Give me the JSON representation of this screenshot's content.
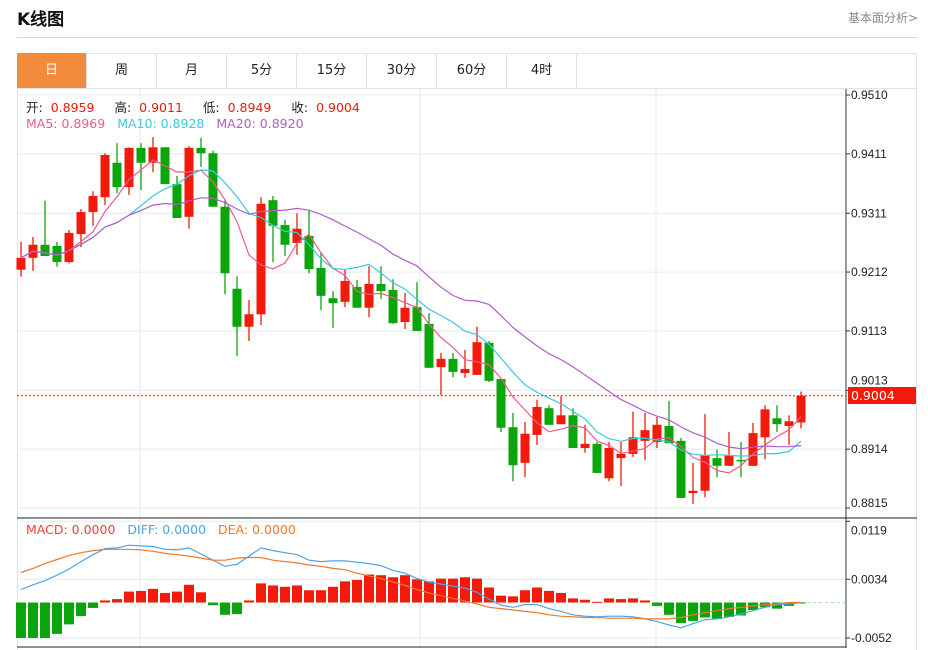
{
  "header": {
    "title": "K线图",
    "link": "基本面分析>"
  },
  "tabs": [
    {
      "label": "日",
      "active": true
    },
    {
      "label": "周"
    },
    {
      "label": "月"
    },
    {
      "label": "5分"
    },
    {
      "label": "15分"
    },
    {
      "label": "30分"
    },
    {
      "label": "60分"
    },
    {
      "label": "4时"
    }
  ],
  "ohlc_legend": {
    "open_label": "开:",
    "open": "0.8959",
    "high_label": "高:",
    "high": "0.9011",
    "low_label": "低:",
    "low": "0.8949",
    "close_label": "收:",
    "close": "0.9004"
  },
  "ma_legend": {
    "ma5": "MA5: 0.8969",
    "ma10": "MA10: 0.8928",
    "ma20": "MA20: 0.8920"
  },
  "macd_legend": {
    "macd": "MACD: 0.0000",
    "diff": "DIFF: 0.0000",
    "dea": "DEA: 0.0000"
  },
  "current_price": "0.9004",
  "colors": {
    "up": "#f21a0a",
    "down": "#0aa50a",
    "ma5": "#ee5a8c",
    "ma10": "#3cc8dc",
    "ma20": "#b25cc8",
    "diff": "#4fa3e8",
    "dea": "#f07828",
    "active_tab": "#f28c3c"
  },
  "chart_data": [
    {
      "type": "candlestick",
      "title": "K线图",
      "y_ticks": [
        "0.9510",
        "0.9411",
        "0.9311",
        "0.9212",
        "0.9113",
        "0.9013",
        "0.8914",
        "0.8815"
      ],
      "ylim": [
        0.8815,
        0.951
      ],
      "ma_periods": [
        5,
        10,
        20
      ],
      "candles_ohlc": [
        [
          0.9216,
          0.9263,
          0.9204,
          0.9236
        ],
        [
          0.9236,
          0.9271,
          0.9214,
          0.9258
        ],
        [
          0.9258,
          0.9332,
          0.9239,
          0.9239
        ],
        [
          0.9256,
          0.9263,
          0.9221,
          0.9229
        ],
        [
          0.9229,
          0.9283,
          0.9227,
          0.9278
        ],
        [
          0.9276,
          0.9318,
          0.9254,
          0.9313
        ],
        [
          0.9313,
          0.9348,
          0.929,
          0.934
        ],
        [
          0.9338,
          0.9412,
          0.9325,
          0.9409
        ],
        [
          0.9396,
          0.9429,
          0.9345,
          0.9355
        ],
        [
          0.9355,
          0.9422,
          0.9342,
          0.9421
        ],
        [
          0.9421,
          0.9429,
          0.935,
          0.9396
        ],
        [
          0.9396,
          0.9439,
          0.938,
          0.9422
        ],
        [
          0.9422,
          0.9422,
          0.936,
          0.936
        ],
        [
          0.936,
          0.9374,
          0.9303,
          0.9303
        ],
        [
          0.9305,
          0.9424,
          0.9285,
          0.9421
        ],
        [
          0.9421,
          0.9438,
          0.9389,
          0.9412
        ],
        [
          0.9412,
          0.9416,
          0.9322,
          0.9322
        ],
        [
          0.9322,
          0.9333,
          0.9175,
          0.921
        ],
        [
          0.9184,
          0.9205,
          0.9071,
          0.912
        ],
        [
          0.912,
          0.9165,
          0.9096,
          0.9141
        ],
        [
          0.9141,
          0.9338,
          0.9123,
          0.9327
        ],
        [
          0.9333,
          0.934,
          0.9229,
          0.929
        ],
        [
          0.9291,
          0.93,
          0.9239,
          0.9258
        ],
        [
          0.9261,
          0.9311,
          0.9241,
          0.9285
        ],
        [
          0.9273,
          0.9316,
          0.921,
          0.9217
        ],
        [
          0.9219,
          0.9244,
          0.9148,
          0.9172
        ],
        [
          0.9168,
          0.918,
          0.9118,
          0.916
        ],
        [
          0.9162,
          0.9217,
          0.9153,
          0.9197
        ],
        [
          0.9187,
          0.9199,
          0.9152,
          0.9152
        ],
        [
          0.9152,
          0.9222,
          0.9136,
          0.9192
        ],
        [
          0.9192,
          0.9222,
          0.9167,
          0.918
        ],
        [
          0.9182,
          0.92,
          0.9125,
          0.9126
        ],
        [
          0.9128,
          0.9177,
          0.9116,
          0.9152
        ],
        [
          0.9153,
          0.9195,
          0.9113,
          0.9113
        ],
        [
          0.9125,
          0.9143,
          0.9051,
          0.9051
        ],
        [
          0.9052,
          0.9076,
          0.9005,
          0.9066
        ],
        [
          0.9066,
          0.9076,
          0.9035,
          0.9044
        ],
        [
          0.9042,
          0.9081,
          0.9034,
          0.9049
        ],
        [
          0.9039,
          0.912,
          0.9039,
          0.9094
        ],
        [
          0.9093,
          0.9096,
          0.9027,
          0.9029
        ],
        [
          0.9032,
          0.9032,
          0.8943,
          0.895
        ],
        [
          0.8951,
          0.8975,
          0.886,
          0.8887
        ],
        [
          0.8891,
          0.896,
          0.8867,
          0.894
        ],
        [
          0.8938,
          0.8997,
          0.8921,
          0.8985
        ],
        [
          0.8983,
          0.8988,
          0.8955,
          0.8955
        ],
        [
          0.8956,
          0.9003,
          0.8956,
          0.8971
        ],
        [
          0.8971,
          0.8983,
          0.8916,
          0.8916
        ],
        [
          0.8916,
          0.8955,
          0.8908,
          0.8923
        ],
        [
          0.8923,
          0.8926,
          0.8874,
          0.8874
        ],
        [
          0.8865,
          0.8926,
          0.886,
          0.8916
        ],
        [
          0.8899,
          0.8926,
          0.8852,
          0.8906
        ],
        [
          0.8906,
          0.8977,
          0.8901,
          0.8934
        ],
        [
          0.8928,
          0.8975,
          0.8896,
          0.8946
        ],
        [
          0.8926,
          0.8968,
          0.8916,
          0.8955
        ],
        [
          0.8953,
          0.8995,
          0.8924,
          0.8924
        ],
        [
          0.8928,
          0.8933,
          0.8832,
          0.8832
        ],
        [
          0.884,
          0.8891,
          0.8822,
          0.8844
        ],
        [
          0.8844,
          0.8973,
          0.8833,
          0.8904
        ],
        [
          0.8899,
          0.8913,
          0.8867,
          0.8886
        ],
        [
          0.8886,
          0.8943,
          0.8886,
          0.8904
        ],
        [
          0.8896,
          0.8926,
          0.8867,
          0.8894
        ],
        [
          0.8886,
          0.8958,
          0.8886,
          0.8941
        ],
        [
          0.8934,
          0.8988,
          0.8897,
          0.8981
        ],
        [
          0.8966,
          0.8988,
          0.8943,
          0.8956
        ],
        [
          0.8953,
          0.8971,
          0.8921,
          0.8961
        ],
        [
          0.8959,
          0.9011,
          0.8949,
          0.9004
        ]
      ]
    },
    {
      "type": "bar+line",
      "title": "MACD",
      "y_ticks": [
        "0.0119",
        "0.0034",
        "-0.0052"
      ],
      "ylim": [
        -0.0052,
        0.0119
      ],
      "macd": [
        -0.0052,
        -0.0052,
        -0.0052,
        -0.0046,
        -0.0032,
        -0.002,
        -0.0008,
        0.0003,
        0.0005,
        0.0016,
        0.0017,
        0.002,
        0.0014,
        0.0016,
        0.0026,
        0.0015,
        -0.0004,
        -0.0018,
        -0.0017,
        0.0003,
        0.0028,
        0.0025,
        0.0023,
        0.0025,
        0.0018,
        0.0018,
        0.0023,
        0.0031,
        0.0033,
        0.0041,
        0.004,
        0.0037,
        0.004,
        0.0034,
        0.0031,
        0.0035,
        0.0035,
        0.0037,
        0.0035,
        0.0022,
        0.001,
        0.0009,
        0.0018,
        0.0022,
        0.0017,
        0.0014,
        0.0006,
        0.0004,
        0.0001,
        0.0006,
        0.0005,
        0.0006,
        0.0003,
        -0.0005,
        -0.0018,
        -0.003,
        -0.0027,
        -0.0022,
        -0.0024,
        -0.0021,
        -0.0019,
        -0.0011,
        -0.0007,
        -0.0009,
        -0.0005,
        -0.0001
      ],
      "diff": [
        0.0019,
        0.0026,
        0.0032,
        0.004,
        0.0049,
        0.006,
        0.007,
        0.0079,
        0.008,
        0.0084,
        0.0083,
        0.0082,
        0.0078,
        0.0077,
        0.008,
        0.0071,
        0.0062,
        0.0053,
        0.0056,
        0.0068,
        0.008,
        0.0076,
        0.0073,
        0.007,
        0.0062,
        0.006,
        0.0061,
        0.0061,
        0.0059,
        0.0057,
        0.0054,
        0.0047,
        0.0043,
        0.0035,
        0.003,
        0.0027,
        0.0024,
        0.0021,
        0.0015,
        0.0005,
        -0.0004,
        -0.0007,
        -0.0003,
        -0.0003,
        -0.0009,
        -0.0013,
        -0.0018,
        -0.002,
        -0.0021,
        -0.002,
        -0.002,
        -0.0021,
        -0.0024,
        -0.0028,
        -0.0033,
        -0.0037,
        -0.0031,
        -0.0025,
        -0.0024,
        -0.0021,
        -0.0017,
        -0.0012,
        -0.0007,
        -0.0003,
        -0.0002,
        0.0
      ],
      "dea": [
        0.0044,
        0.005,
        0.0057,
        0.0063,
        0.0069,
        0.0073,
        0.0076,
        0.0078,
        0.0078,
        0.0078,
        0.0077,
        0.0075,
        0.0072,
        0.007,
        0.0068,
        0.0065,
        0.0062,
        0.0062,
        0.0065,
        0.0066,
        0.0066,
        0.0062,
        0.006,
        0.0058,
        0.0055,
        0.0053,
        0.005,
        0.0048,
        0.0043,
        0.0039,
        0.0035,
        0.003,
        0.0025,
        0.0019,
        0.0014,
        0.001,
        0.0006,
        0.0002,
        -0.0002,
        -0.0007,
        -0.0009,
        -0.0011,
        -0.0013,
        -0.0015,
        -0.0018,
        -0.002,
        -0.0021,
        -0.0022,
        -0.0022,
        -0.0023,
        -0.0023,
        -0.0023,
        -0.0024,
        -0.0024,
        -0.0024,
        -0.0022,
        -0.0018,
        -0.0015,
        -0.0012,
        -0.0009,
        -0.0007,
        -0.0005,
        -0.0003,
        -0.0002,
        0.0,
        0.0
      ]
    }
  ]
}
